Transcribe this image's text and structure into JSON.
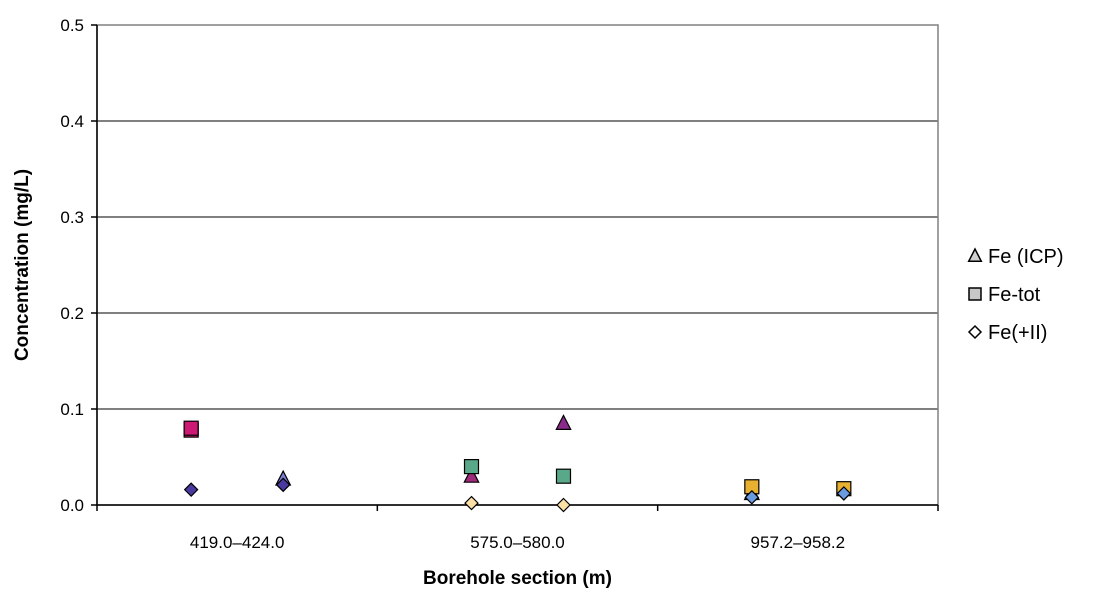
{
  "chart_data": {
    "type": "scatter",
    "title": "",
    "xlabel": "Borehole section (m)",
    "ylabel": "Concentration (mg/L)",
    "ylim": [
      0,
      0.5
    ],
    "y_ticks": [
      "0.0",
      "0.1",
      "0.2",
      "0.3",
      "0.4",
      "0.5"
    ],
    "categories": [
      "419.0–424.0",
      "575.0–580.0",
      "957.2–958.2"
    ],
    "grid": "horizontal major gridlines",
    "legend_position": "right",
    "legend": [
      {
        "label": "Fe (ICP)",
        "marker": "triangle"
      },
      {
        "label": "Fe-tot",
        "marker": "square"
      },
      {
        "label": "Fe(+II)",
        "marker": "diamond"
      }
    ],
    "series": [
      {
        "name": "Fe (ICP)",
        "marker": "triangle",
        "points": [
          {
            "category": "419.0–424.0",
            "offset": 1,
            "y": 0.027,
            "color": "#7b7bd6"
          },
          {
            "category": "575.0–580.0",
            "offset": 0,
            "y": 0.03,
            "color": "#a02a7a"
          },
          {
            "category": "575.0–580.0",
            "offset": 1,
            "y": 0.085,
            "color": "#8a2a8a"
          },
          {
            "category": "957.2–958.2",
            "offset": 0,
            "y": 0.012,
            "color": "#e0a020"
          }
        ]
      },
      {
        "name": "Fe-tot",
        "marker": "square",
        "points": [
          {
            "category": "419.0–424.0",
            "offset": 0,
            "y": 0.078,
            "color": "#cc1a74"
          },
          {
            "category": "419.0–424.0",
            "offset": 0,
            "y": 0.08,
            "color": "#cc1a74"
          },
          {
            "category": "575.0–580.0",
            "offset": 0,
            "y": 0.04,
            "color": "#5aa88a"
          },
          {
            "category": "575.0–580.0",
            "offset": 1,
            "y": 0.03,
            "color": "#5aa88a"
          },
          {
            "category": "957.2–958.2",
            "offset": 0,
            "y": 0.019,
            "color": "#e8b030"
          },
          {
            "category": "957.2–958.2",
            "offset": 1,
            "y": 0.017,
            "color": "#e8b030"
          }
        ]
      },
      {
        "name": "Fe(+II)",
        "marker": "diamond",
        "points": [
          {
            "category": "419.0–424.0",
            "offset": 0,
            "y": 0.016,
            "color": "#4a3aa0"
          },
          {
            "category": "419.0–424.0",
            "offset": 1,
            "y": 0.021,
            "color": "#4a3aa0"
          },
          {
            "category": "575.0–580.0",
            "offset": 0,
            "y": 0.002,
            "color": "#fce0a8"
          },
          {
            "category": "575.0–580.0",
            "offset": 1,
            "y": 0.0,
            "color": "#fce0a8"
          },
          {
            "category": "957.2–958.2",
            "offset": 0,
            "y": 0.008,
            "color": "#6a9ae0"
          },
          {
            "category": "957.2–958.2",
            "offset": 1,
            "y": 0.012,
            "color": "#6a9ae0"
          }
        ]
      }
    ]
  }
}
